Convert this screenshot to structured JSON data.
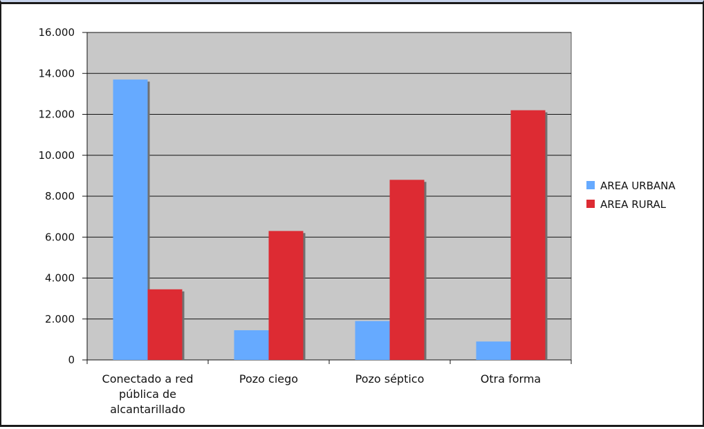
{
  "chart_data": {
    "type": "bar",
    "categories": [
      [
        "Conectado a red",
        "pública de",
        "alcantarillado"
      ],
      [
        "Pozo ciego"
      ],
      [
        "Pozo séptico"
      ],
      [
        "Otra forma"
      ]
    ],
    "series": [
      {
        "name": "AREA URBANA",
        "color": "#66aaff",
        "values": [
          13700,
          1450,
          1900,
          900
        ]
      },
      {
        "name": "AREA RURAL",
        "color": "#dd2b33",
        "values": [
          3450,
          6300,
          8800,
          12200
        ]
      }
    ],
    "yticks": [
      "0",
      "2.000",
      "4.000",
      "6.000",
      "8.000",
      "10.000",
      "12.000",
      "14.000",
      "16.000"
    ],
    "ylim": [
      0,
      16000
    ],
    "grid": true,
    "legend": "right",
    "plot_background": "#c8c8c8",
    "shadow_color": "#707070",
    "title": "",
    "xlabel": "",
    "ylabel": ""
  }
}
